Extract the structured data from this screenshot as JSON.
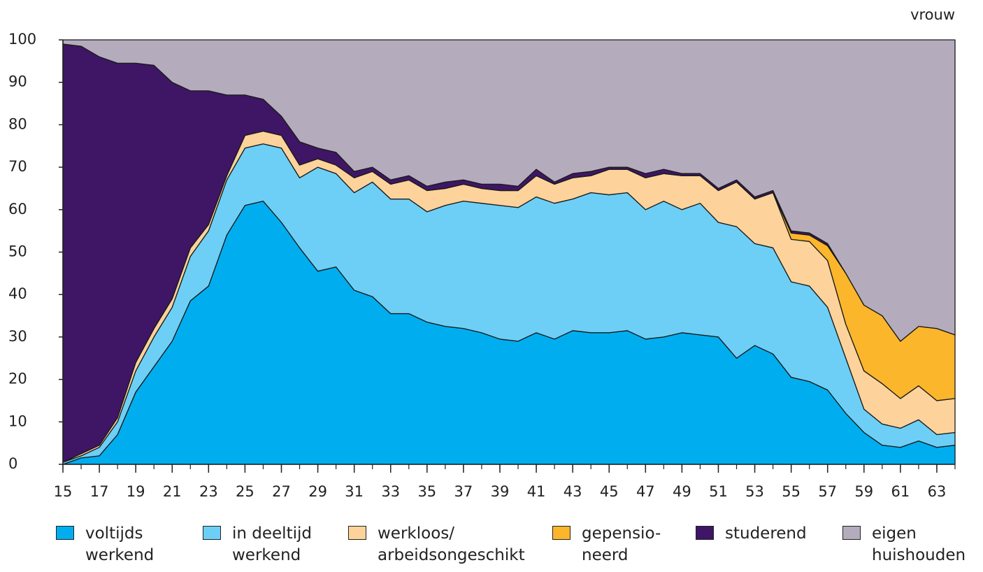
{
  "chart_data": {
    "type": "stacked-area",
    "annotation": "vrouw",
    "x": [
      15,
      16,
      17,
      18,
      19,
      20,
      21,
      22,
      23,
      24,
      25,
      26,
      27,
      28,
      29,
      30,
      31,
      32,
      33,
      34,
      35,
      36,
      37,
      38,
      39,
      40,
      41,
      42,
      43,
      44,
      45,
      46,
      47,
      48,
      49,
      50,
      51,
      52,
      53,
      54,
      55,
      56,
      57,
      58,
      59,
      60,
      61,
      62,
      63,
      64
    ],
    "xlim": [
      15,
      64
    ],
    "xticks": [
      15,
      17,
      19,
      21,
      23,
      25,
      27,
      29,
      31,
      33,
      35,
      37,
      39,
      41,
      43,
      45,
      47,
      49,
      51,
      53,
      55,
      57,
      59,
      61,
      63
    ],
    "ylim": [
      0,
      100
    ],
    "yticks": [
      0,
      10,
      20,
      30,
      40,
      50,
      60,
      70,
      80,
      90,
      100
    ],
    "grid": false,
    "series": [
      {
        "name": "voltijds werkend",
        "color": "#00aeef",
        "values": [
          0,
          1.5,
          2,
          7,
          17,
          23,
          29,
          38.5,
          42,
          54,
          61,
          62,
          57,
          51,
          45.5,
          46.5,
          41,
          39.5,
          35.5,
          35.5,
          33.5,
          32.5,
          32,
          31,
          29.5,
          29,
          31,
          29.5,
          31.5,
          31,
          31,
          31.5,
          29.5,
          30,
          31,
          30.5,
          30,
          25,
          28,
          26,
          20.5,
          19.5,
          17.5,
          12,
          7.5,
          4.5,
          4,
          5.5,
          4,
          4.5
        ]
      },
      {
        "name": "in deeltijd werkend",
        "color": "#6dcff6",
        "values": [
          0.5,
          0.5,
          2,
          3,
          5,
          7,
          8,
          10.5,
          13,
          13,
          13.5,
          13.5,
          17.5,
          16.5,
          24.5,
          22,
          23,
          27,
          27,
          27,
          26,
          28.5,
          30,
          30.5,
          31.5,
          31.5,
          32,
          32,
          31,
          33,
          32.5,
          32.5,
          30.5,
          32,
          29,
          31,
          27,
          31,
          24,
          25,
          22.5,
          22.5,
          19.5,
          13,
          5.5,
          5,
          4.5,
          5,
          3,
          3
        ]
      },
      {
        "name": "werkloos/ arbeidsongeschikt",
        "color": "#fdd39b",
        "values": [
          0,
          0.5,
          0.5,
          1,
          2,
          2,
          2,
          2,
          1.5,
          1,
          3,
          3,
          3,
          3,
          2,
          2,
          3.5,
          2.5,
          3.5,
          4.5,
          5,
          4,
          4,
          3.5,
          3.5,
          4,
          5,
          4.5,
          5,
          4,
          6,
          5.5,
          7.5,
          6.5,
          8,
          6.5,
          7.5,
          10.5,
          10.5,
          13,
          10,
          10.5,
          11,
          8,
          9,
          9.5,
          7,
          8,
          8,
          8
        ]
      },
      {
        "name": "gepensio-neerd",
        "color": "#fbb62b",
        "values": [
          0,
          0,
          0,
          0,
          0,
          0,
          0,
          0,
          0,
          0,
          0,
          0,
          0,
          0,
          0,
          0,
          0,
          0,
          0,
          0,
          0,
          0,
          0,
          0,
          0,
          0,
          0,
          0,
          0,
          0,
          0,
          0,
          0,
          0,
          0,
          0,
          0,
          0,
          0,
          0,
          1.5,
          1.5,
          3.5,
          12,
          15.5,
          16,
          13.5,
          14,
          17,
          15
        ]
      },
      {
        "name": "studerend",
        "color": "#3e1665",
        "values": [
          98.5,
          96,
          91.5,
          83.5,
          70.5,
          62,
          51,
          37,
          31.5,
          19,
          9.5,
          7.5,
          4.5,
          5.5,
          2.5,
          3,
          1.5,
          1,
          1,
          1,
          1,
          1.5,
          1,
          1,
          1.5,
          1,
          1.5,
          0.5,
          1,
          1,
          0.5,
          0.5,
          1,
          1,
          0.5,
          0.5,
          0.5,
          0.5,
          0.5,
          0.5,
          0.5,
          0.5,
          0.5,
          0,
          0,
          0,
          0,
          0,
          0,
          0
        ]
      },
      {
        "name": "eigen huishouden",
        "color": "#b4acbd",
        "values": [
          1,
          1.5,
          4,
          5.5,
          5.5,
          6,
          10,
          12,
          12,
          13,
          13,
          14,
          18,
          24,
          25.5,
          26.5,
          31,
          30,
          33,
          32,
          34.5,
          33.5,
          33,
          34,
          34,
          34.5,
          30.5,
          33.5,
          31.5,
          31,
          30,
          30,
          31.5,
          30.5,
          31.5,
          31.5,
          35,
          33,
          37,
          35.5,
          45,
          45.5,
          48,
          55,
          62.5,
          65,
          71,
          67.5,
          68,
          69.5
        ]
      }
    ]
  }
}
